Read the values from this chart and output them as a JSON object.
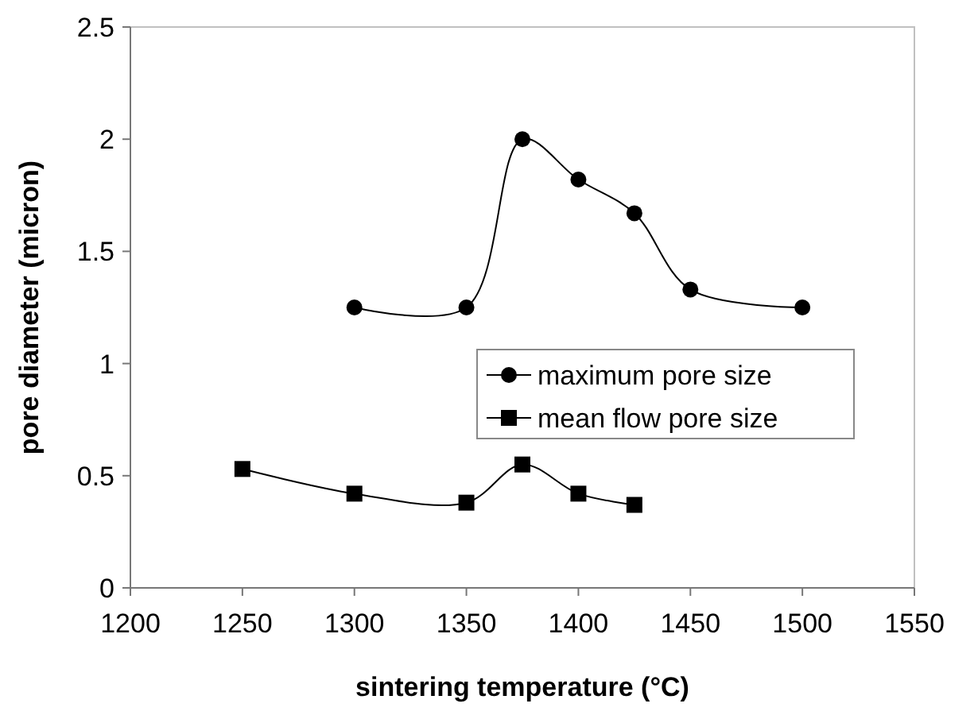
{
  "chart_data": {
    "type": "line",
    "xlabel": "sintering temperature (°C)",
    "ylabel": "pore diameter (micron)",
    "xlim": [
      1200,
      1550
    ],
    "xticks": [
      1200,
      1250,
      1300,
      1350,
      1400,
      1450,
      1500,
      1550
    ],
    "ylim": [
      0,
      2.5
    ],
    "yticks": [
      0,
      0.5,
      1,
      1.5,
      2,
      2.5
    ],
    "grid": false,
    "legend": "right",
    "series": [
      {
        "name": "maximum pore size",
        "color": "#000000",
        "marker": "circle",
        "x": [
          1300,
          1350,
          1375,
          1400,
          1425,
          1450,
          1500
        ],
        "values": [
          1.25,
          1.25,
          2.0,
          1.82,
          1.67,
          1.33,
          1.25
        ]
      },
      {
        "name": "mean flow pore size",
        "color": "#000000",
        "marker": "square",
        "x": [
          1250,
          1300,
          1350,
          1375,
          1400,
          1425
        ],
        "values": [
          0.53,
          0.42,
          0.38,
          0.55,
          0.42,
          0.37
        ]
      }
    ]
  }
}
